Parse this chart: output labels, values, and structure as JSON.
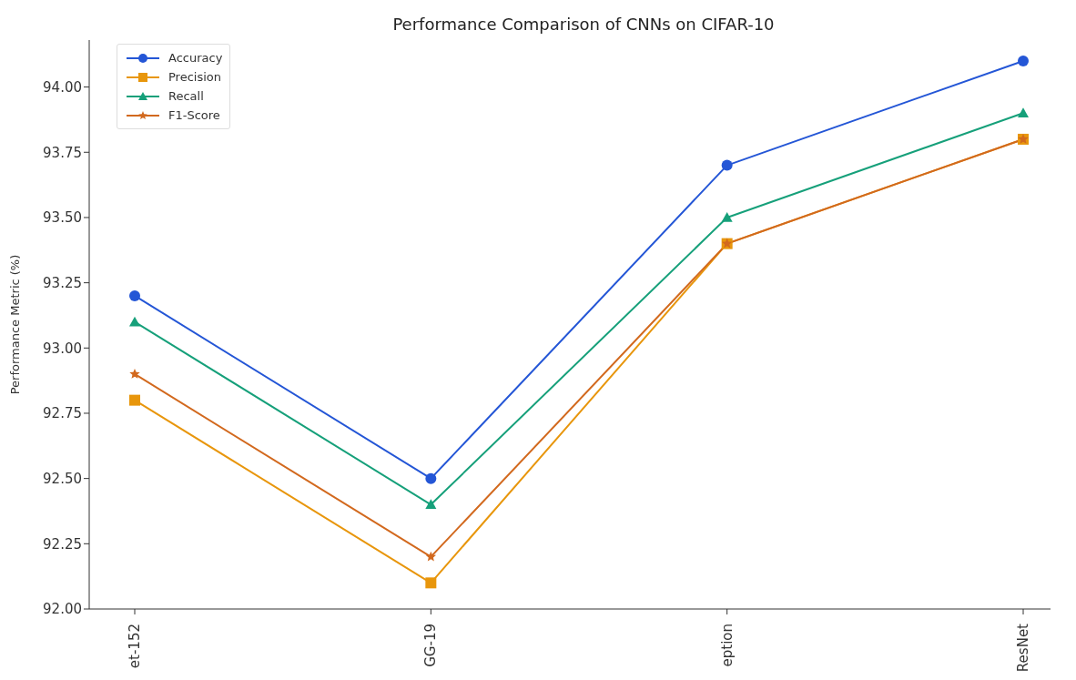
{
  "chart_data": {
    "type": "line",
    "title": "Performance Comparison of CNNs on CIFAR-10",
    "ylabel": "Performance Metric (%)",
    "categories": [
      "et-152",
      "GG-19",
      "eption",
      "ResNet"
    ],
    "series": [
      {
        "name": "Accuracy",
        "color": "#2456d6",
        "marker": "circle",
        "values": [
          93.2,
          92.5,
          93.7,
          94.1
        ]
      },
      {
        "name": "Precision",
        "color": "#e8960c",
        "marker": "square",
        "values": [
          92.8,
          92.1,
          93.4,
          93.8
        ]
      },
      {
        "name": "Recall",
        "color": "#16a07a",
        "marker": "triangle",
        "values": [
          93.1,
          92.4,
          93.5,
          93.9
        ]
      },
      {
        "name": "F1-Score",
        "color": "#d2691e",
        "marker": "star",
        "values": [
          92.9,
          92.2,
          93.4,
          93.8
        ]
      }
    ],
    "ylim": [
      92.0,
      94.18
    ],
    "yticks": [
      {
        "value": 92.0,
        "label": "92.00"
      },
      {
        "value": 92.25,
        "label": "92.25"
      },
      {
        "value": 92.5,
        "label": "92.50"
      },
      {
        "value": 92.75,
        "label": "92.75"
      },
      {
        "value": 93.0,
        "label": "93.00"
      },
      {
        "value": 93.25,
        "label": "93.25"
      },
      {
        "value": 93.5,
        "label": "93.50"
      },
      {
        "value": 93.75,
        "label": "93.75"
      },
      {
        "value": 94.0,
        "label": "94.00"
      }
    ],
    "grid": false,
    "legend": "top left",
    "line_style": "solid"
  }
}
